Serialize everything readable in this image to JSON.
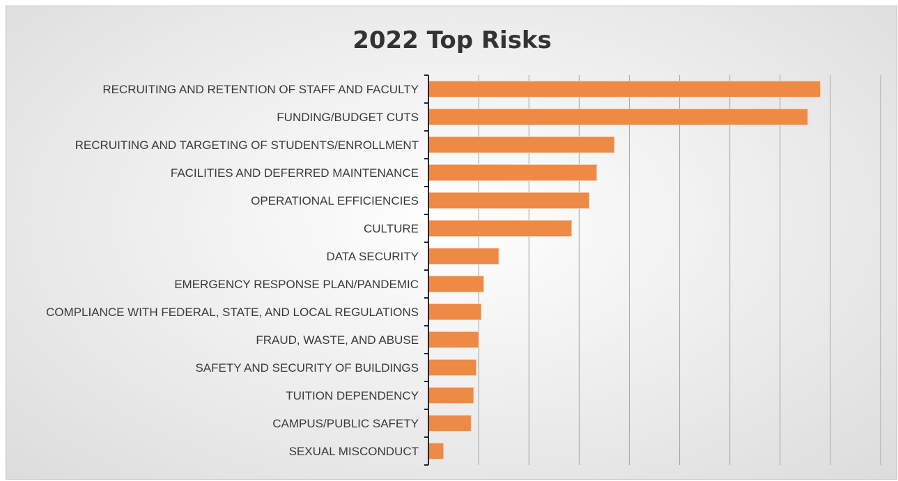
{
  "chart_data": {
    "type": "bar",
    "orientation": "horizontal",
    "title": "2022 Top Risks",
    "xlabel": "",
    "ylabel": "",
    "xlim": [
      0,
      9
    ],
    "grid": true,
    "legend": "none",
    "bar_color": "#ED8A45",
    "categories": [
      "RECRUITING AND RETENTION OF STAFF AND FACULTY",
      "FUNDING/BUDGET CUTS",
      "RECRUITING AND TARGETING OF STUDENTS/ENROLLMENT",
      "FACILITIES AND DEFERRED MAINTENANCE",
      "OPERATIONAL EFFICIENCIES",
      "CULTURE",
      "DATA SECURITY",
      "EMERGENCY RESPONSE PLAN/PANDEMIC",
      "COMPLIANCE WITH FEDERAL, STATE, AND LOCAL REGULATIONS",
      "FRAUD, WASTE, AND ABUSE",
      "SAFETY AND SECURITY OF BUILDINGS",
      "TUITION DEPENDENCY",
      "CAMPUS/PUBLIC SAFETY",
      "SEXUAL MISCONDUCT"
    ],
    "values": [
      7.8,
      7.55,
      3.7,
      3.35,
      3.2,
      2.85,
      1.4,
      1.1,
      1.05,
      1.0,
      0.95,
      0.9,
      0.85,
      0.3
    ]
  }
}
